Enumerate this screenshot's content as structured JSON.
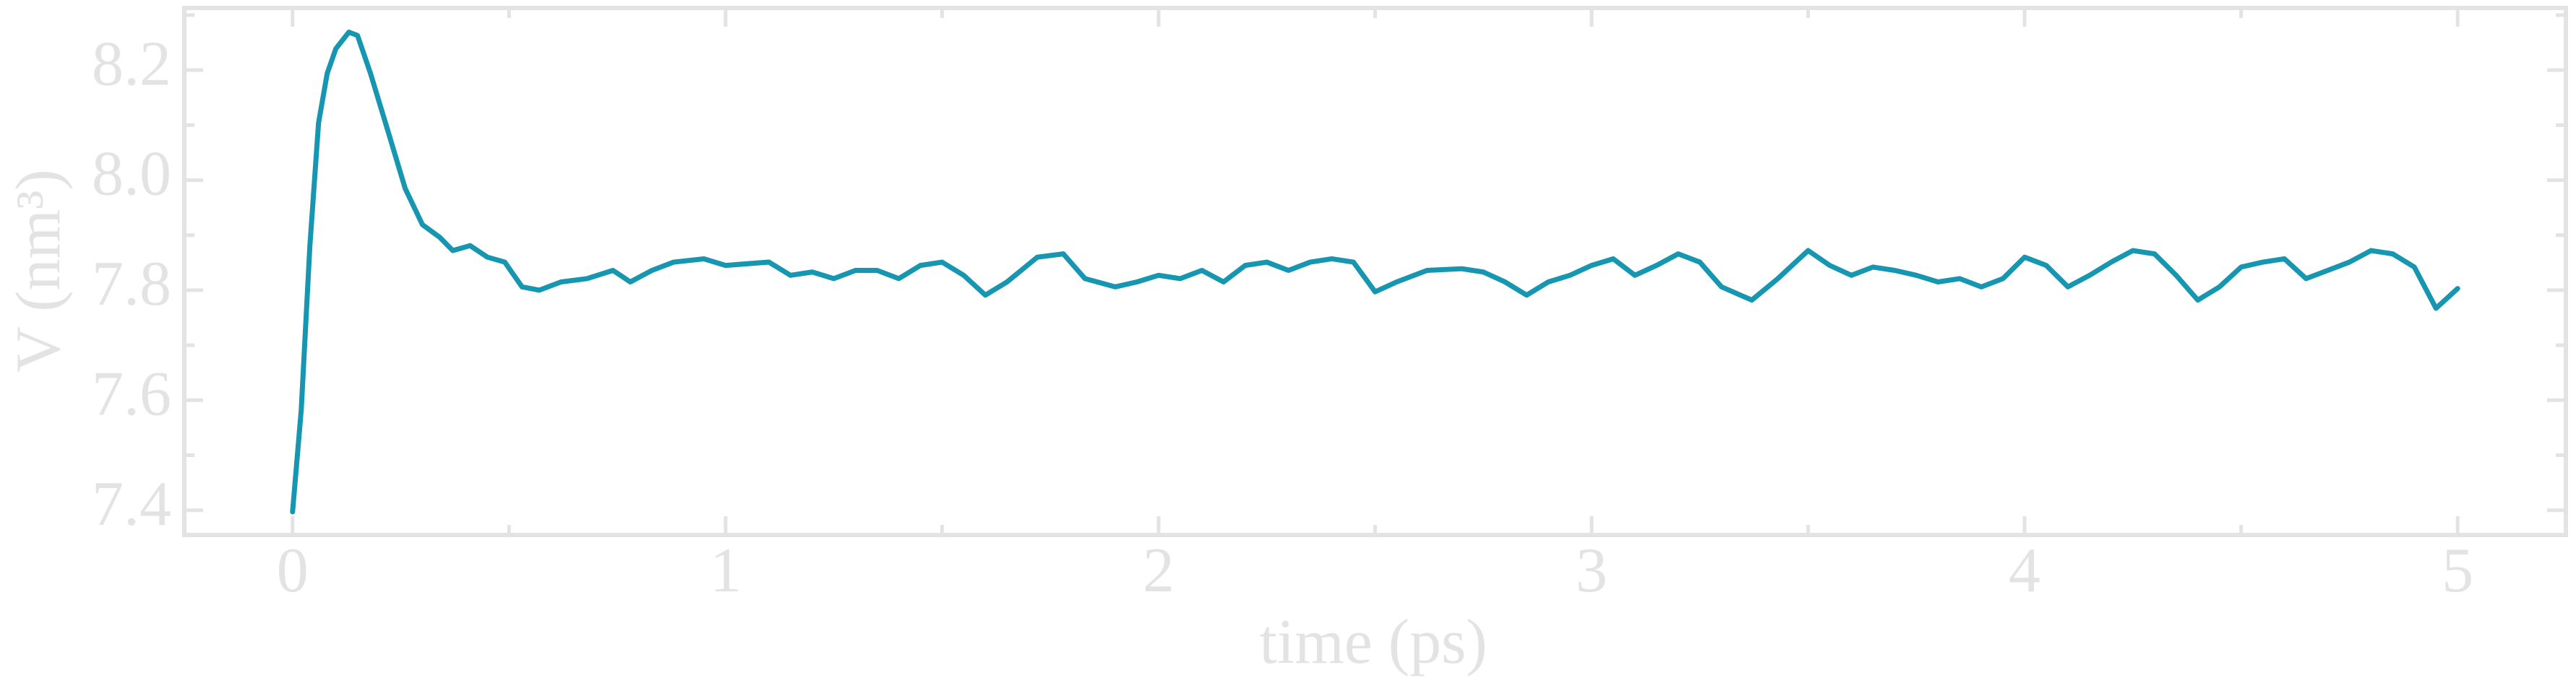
{
  "chart_data": {
    "type": "line",
    "xlabel": "time (ps)",
    "ylabel": "V (nm³)",
    "xlim": [
      -0.25,
      5.25
    ],
    "xticks": [
      0,
      1,
      2,
      3,
      4,
      5
    ],
    "xticks_minor": [
      0.5,
      1.5,
      2.5,
      3.5,
      4.5
    ],
    "ylim": [
      7.355,
      8.313
    ],
    "yticks": [
      {
        "value": 7.4,
        "label": "7.4"
      },
      {
        "value": 7.6,
        "label": "7.6"
      },
      {
        "value": 7.8,
        "label": "7.8"
      },
      {
        "value": 8.0,
        "label": "8.0"
      },
      {
        "value": 8.2,
        "label": "8.2"
      }
    ],
    "yticks_minor": [
      7.5,
      7.7,
      7.9,
      8.1,
      8.3
    ],
    "grid": false,
    "x": [
      0,
      0.02,
      0.04,
      0.06,
      0.08,
      0.1,
      0.13,
      0.15,
      0.18,
      0.22,
      0.26,
      0.3,
      0.34,
      0.37,
      0.41,
      0.45,
      0.49,
      0.53,
      0.57,
      0.62,
      0.68,
      0.74,
      0.78,
      0.83,
      0.88,
      0.95,
      1.0,
      1.1,
      1.15,
      1.2,
      1.25,
      1.3,
      1.35,
      1.4,
      1.45,
      1.5,
      1.55,
      1.6,
      1.65,
      1.72,
      1.78,
      1.83,
      1.9,
      1.95,
      2.0,
      2.05,
      2.1,
      2.15,
      2.2,
      2.25,
      2.3,
      2.35,
      2.4,
      2.45,
      2.5,
      2.55,
      2.62,
      2.7,
      2.75,
      2.8,
      2.85,
      2.9,
      2.95,
      3.0,
      3.05,
      3.1,
      3.15,
      3.2,
      3.25,
      3.3,
      3.37,
      3.43,
      3.5,
      3.55,
      3.6,
      3.65,
      3.7,
      3.75,
      3.8,
      3.85,
      3.9,
      3.95,
      4.0,
      4.05,
      4.1,
      4.15,
      4.2,
      4.25,
      4.3,
      4.35,
      4.4,
      4.45,
      4.5,
      4.55,
      4.6,
      4.65,
      4.7,
      4.75,
      4.8,
      4.85,
      4.9,
      4.95,
      5.0
    ],
    "series": [
      {
        "name": "V",
        "color": "#1696b0",
        "values": [
          7.397,
          7.582,
          7.881,
          8.104,
          8.194,
          8.239,
          8.269,
          8.263,
          8.194,
          8.09,
          7.985,
          7.919,
          7.896,
          7.872,
          7.881,
          7.86,
          7.851,
          7.806,
          7.8,
          7.815,
          7.821,
          7.836,
          7.815,
          7.836,
          7.851,
          7.857,
          7.845,
          7.851,
          7.827,
          7.833,
          7.821,
          7.836,
          7.836,
          7.821,
          7.845,
          7.851,
          7.827,
          7.791,
          7.815,
          7.86,
          7.866,
          7.821,
          7.806,
          7.815,
          7.827,
          7.821,
          7.836,
          7.815,
          7.845,
          7.851,
          7.836,
          7.851,
          7.857,
          7.851,
          7.797,
          7.815,
          7.836,
          7.839,
          7.833,
          7.815,
          7.791,
          7.815,
          7.827,
          7.845,
          7.857,
          7.827,
          7.845,
          7.866,
          7.851,
          7.806,
          7.782,
          7.821,
          7.872,
          7.845,
          7.827,
          7.842,
          7.836,
          7.827,
          7.815,
          7.821,
          7.806,
          7.821,
          7.86,
          7.845,
          7.806,
          7.827,
          7.851,
          7.872,
          7.866,
          7.827,
          7.782,
          7.806,
          7.842,
          7.851,
          7.857,
          7.821,
          7.836,
          7.851,
          7.872,
          7.866,
          7.842,
          7.767,
          7.803
        ]
      }
    ]
  }
}
